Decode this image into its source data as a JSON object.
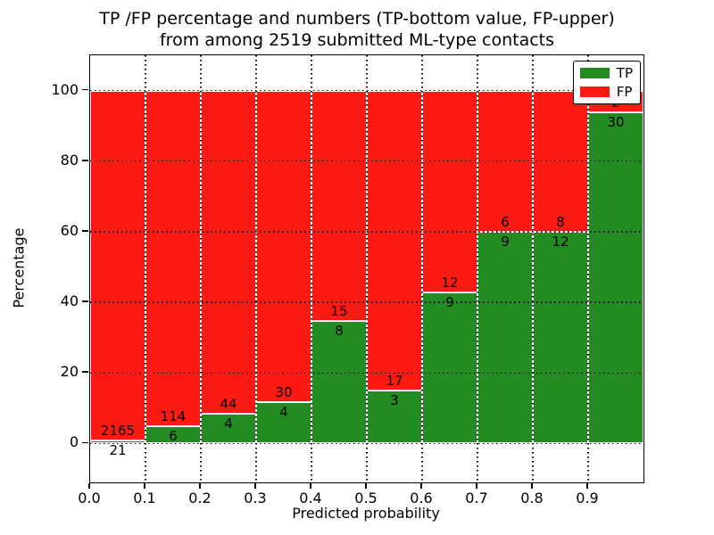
{
  "title": {
    "line1": "TP /FP percentage and numbers (TP-bottom value, FP-upper)",
    "line2": "from among 2519 submitted ML-type contacts"
  },
  "chart_data": {
    "type": "bar",
    "stacked": true,
    "normalized": "each bin scaled to 100%",
    "total_contacts": 2519,
    "xlabel": "Predicted probability",
    "ylabel": "Percentage",
    "xlim": [
      0.0,
      1.0
    ],
    "ylim": [
      -11,
      110
    ],
    "bin_width": 0.1,
    "x_tick_labels": [
      "0.0",
      "0.1",
      "0.2",
      "0.3",
      "0.4",
      "0.5",
      "0.6",
      "0.7",
      "0.8",
      "0.9"
    ],
    "y_tick_values": [
      0,
      20,
      40,
      60,
      80,
      100
    ],
    "y_tick_labels": [
      "0",
      "20",
      "40",
      "60",
      "80",
      "100"
    ],
    "grid": {
      "style": "dotted",
      "color": "#000000",
      "horizontal": true,
      "vertical": true,
      "drawn_above_bars": true
    },
    "bar_edge_color": "#ffffff",
    "series": [
      {
        "name": "TP",
        "color": "#228b22",
        "counts": [
          21,
          6,
          4,
          4,
          8,
          3,
          9,
          9,
          12,
          30
        ]
      },
      {
        "name": "FP",
        "color": "#fb1b12",
        "counts": [
          2165,
          114,
          44,
          30,
          15,
          17,
          12,
          6,
          8,
          2
        ]
      }
    ],
    "legend": {
      "position": "upper right",
      "entries": [
        {
          "label": "TP",
          "color": "#228b22"
        },
        {
          "label": "FP",
          "color": "#fb1b12"
        }
      ]
    }
  }
}
